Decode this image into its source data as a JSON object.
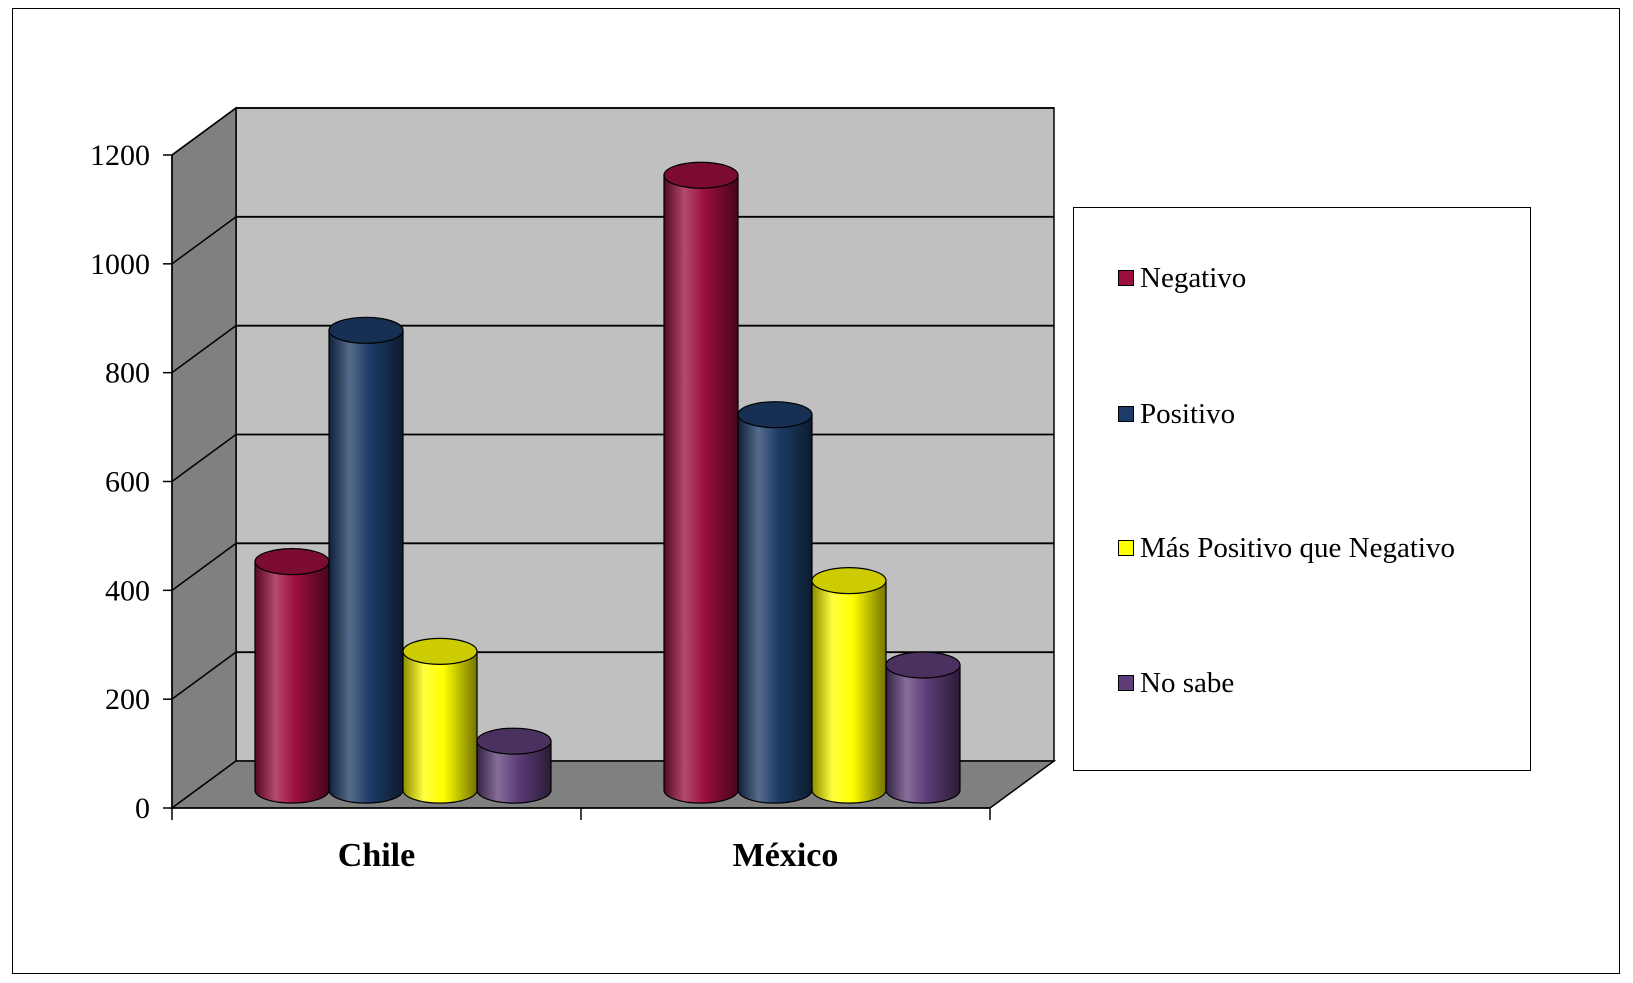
{
  "chart_data": {
    "type": "bar",
    "style": "3d-cylinder",
    "categories": [
      "Chile",
      "México"
    ],
    "series": [
      {
        "name": "Negativo",
        "color": "#9b0e3e",
        "values": [
          420,
          1130
        ]
      },
      {
        "name": "Positivo",
        "color": "#1c3b66",
        "values": [
          845,
          690
        ]
      },
      {
        "name": "Más Positivo que Negativo",
        "color": "#ffff00",
        "values": [
          255,
          385
        ]
      },
      {
        "name": "No sabe",
        "color": "#5e3d78",
        "values": [
          90,
          230
        ]
      }
    ],
    "title": "",
    "xlabel": "",
    "ylabel": "",
    "ylim": [
      0,
      1200
    ],
    "yticks": [
      "0",
      "200",
      "400",
      "600",
      "800",
      "1000",
      "1200"
    ],
    "grid": true,
    "legend_position": "right",
    "wall_color": "#c0c0c0",
    "side_wall_color": "#808080",
    "floor_color": "#808080"
  }
}
